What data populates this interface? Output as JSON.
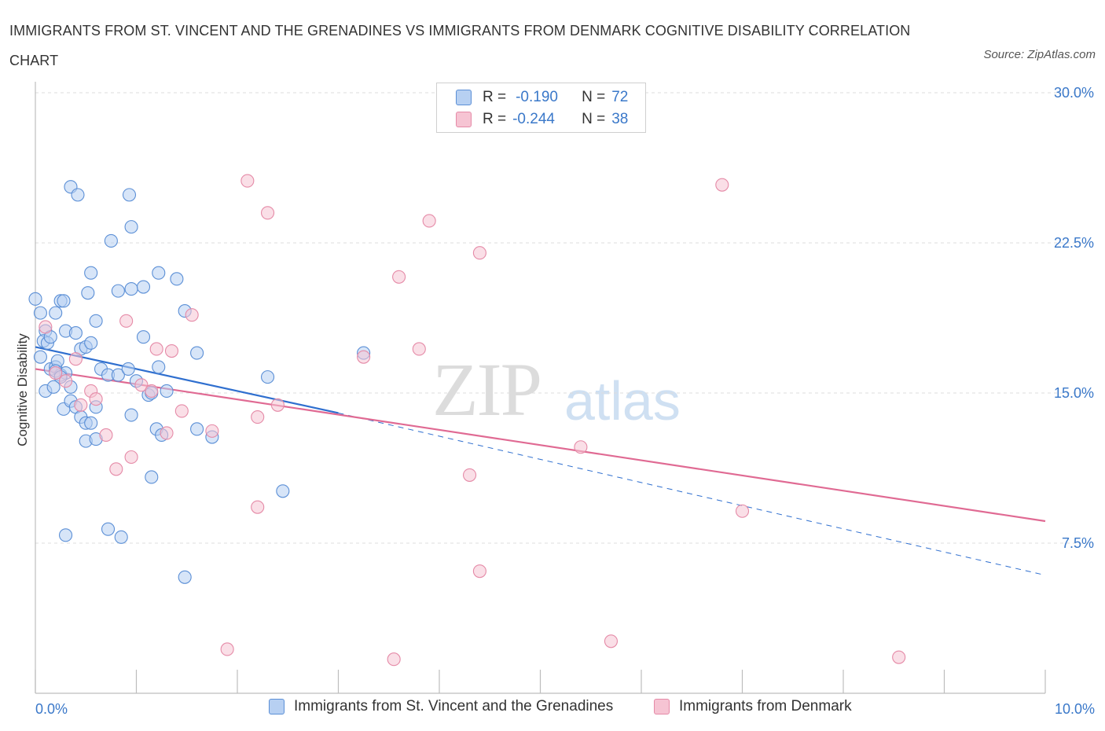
{
  "title": "IMMIGRANTS FROM ST. VINCENT AND THE GRENADINES VS IMMIGRANTS FROM DENMARK COGNITIVE DISABILITY CORRELATION CHART",
  "source": "Source: ZipAtlas.com",
  "watermark": {
    "zip": "ZIP",
    "atlas": "atlas"
  },
  "legend": {
    "rows": [
      {
        "r_label": "R =",
        "r_value": "-0.190",
        "n_label": "N =",
        "n_value": "72"
      },
      {
        "r_label": "R =",
        "r_value": "-0.244",
        "n_label": "N =",
        "n_value": "38"
      }
    ]
  },
  "colors": {
    "blue_fill": "#b7d0f2",
    "blue_stroke": "#5b8fd6",
    "blue_line": "#2f6fcf",
    "pink_fill": "#f6c4d3",
    "pink_stroke": "#e58aa7",
    "pink_line": "#e06a93",
    "grid": "#dcdcdc",
    "tick_text": "#3a78c9"
  },
  "chart_data": {
    "type": "scatter",
    "title": "IMMIGRANTS FROM ST. VINCENT AND THE GRENADINES VS IMMIGRANTS FROM DENMARK COGNITIVE DISABILITY CORRELATION CHART",
    "xlabel": "",
    "ylabel": "Cognitive Disability",
    "xlim": [
      0,
      10
    ],
    "ylim": [
      0,
      30
    ],
    "x_tick_labels": [
      "0.0%",
      "10.0%"
    ],
    "y_ticks": [
      7.5,
      15.0,
      22.5,
      30.0
    ],
    "y_tick_labels": [
      "7.5%",
      "15.0%",
      "22.5%",
      "30.0%"
    ],
    "grid": true,
    "legend_position": "top-center",
    "series": [
      {
        "name": "Immigrants from St. Vincent and the Grenadines",
        "color": "#5b8fd6",
        "trend": {
          "x": [
            0,
            3.0,
            10
          ],
          "y": [
            17.3,
            14.0,
            5.9
          ],
          "dashed_from": 3.0
        },
        "points": [
          [
            0.0,
            19.7
          ],
          [
            0.05,
            19.0
          ],
          [
            0.1,
            18.1
          ],
          [
            0.08,
            17.6
          ],
          [
            0.12,
            17.5
          ],
          [
            0.05,
            16.8
          ],
          [
            0.15,
            16.2
          ],
          [
            0.1,
            15.1
          ],
          [
            0.18,
            15.3
          ],
          [
            0.2,
            16.3
          ],
          [
            0.22,
            16.6
          ],
          [
            0.25,
            15.9
          ],
          [
            0.3,
            16.0
          ],
          [
            0.35,
            15.3
          ],
          [
            0.28,
            14.2
          ],
          [
            0.35,
            14.6
          ],
          [
            0.4,
            14.3
          ],
          [
            0.45,
            13.8
          ],
          [
            0.5,
            13.5
          ],
          [
            0.55,
            13.5
          ],
          [
            0.6,
            14.3
          ],
          [
            0.5,
            12.6
          ],
          [
            0.6,
            12.7
          ],
          [
            0.3,
            18.1
          ],
          [
            0.2,
            19.0
          ],
          [
            0.25,
            19.6
          ],
          [
            0.28,
            19.6
          ],
          [
            0.4,
            18.0
          ],
          [
            0.45,
            17.2
          ],
          [
            0.5,
            17.3
          ],
          [
            0.55,
            17.5
          ],
          [
            0.6,
            18.6
          ],
          [
            0.52,
            20.0
          ],
          [
            0.55,
            21.0
          ],
          [
            0.65,
            16.2
          ],
          [
            0.72,
            15.9
          ],
          [
            0.82,
            15.9
          ],
          [
            0.92,
            16.2
          ],
          [
            1.0,
            15.6
          ],
          [
            0.95,
            13.9
          ],
          [
            1.07,
            17.8
          ],
          [
            1.12,
            14.9
          ],
          [
            1.15,
            15.0
          ],
          [
            1.22,
            16.3
          ],
          [
            1.2,
            13.2
          ],
          [
            1.25,
            12.9
          ],
          [
            1.3,
            15.1
          ],
          [
            0.82,
            20.1
          ],
          [
            0.95,
            20.2
          ],
          [
            1.07,
            20.3
          ],
          [
            1.22,
            21.0
          ],
          [
            1.4,
            20.7
          ],
          [
            1.48,
            19.1
          ],
          [
            1.6,
            17.0
          ],
          [
            0.75,
            22.6
          ],
          [
            0.95,
            23.3
          ],
          [
            0.93,
            24.9
          ],
          [
            0.35,
            25.3
          ],
          [
            0.42,
            24.9
          ],
          [
            0.3,
            7.9
          ],
          [
            0.72,
            8.2
          ],
          [
            0.85,
            7.8
          ],
          [
            1.15,
            10.8
          ],
          [
            1.48,
            5.8
          ],
          [
            1.6,
            13.2
          ],
          [
            1.75,
            12.8
          ],
          [
            2.3,
            15.8
          ],
          [
            2.45,
            10.1
          ],
          [
            3.25,
            17.0
          ],
          [
            0.2,
            16.1
          ],
          [
            0.15,
            17.8
          ],
          [
            0.25,
            15.8
          ]
        ]
      },
      {
        "name": "Immigrants from Denmark",
        "color": "#e58aa7",
        "trend": {
          "x": [
            0,
            10
          ],
          "y": [
            16.2,
            8.6
          ]
        },
        "points": [
          [
            0.1,
            18.3
          ],
          [
            0.2,
            16.0
          ],
          [
            0.3,
            15.6
          ],
          [
            0.4,
            16.7
          ],
          [
            0.45,
            14.4
          ],
          [
            0.55,
            15.1
          ],
          [
            0.6,
            14.7
          ],
          [
            0.7,
            12.9
          ],
          [
            0.8,
            11.2
          ],
          [
            0.9,
            18.6
          ],
          [
            0.95,
            11.8
          ],
          [
            1.05,
            15.4
          ],
          [
            1.15,
            15.1
          ],
          [
            1.2,
            17.2
          ],
          [
            1.3,
            13.0
          ],
          [
            1.35,
            17.1
          ],
          [
            1.45,
            14.1
          ],
          [
            1.55,
            18.9
          ],
          [
            1.75,
            13.1
          ],
          [
            1.9,
            2.2
          ],
          [
            2.1,
            25.6
          ],
          [
            2.2,
            13.8
          ],
          [
            2.2,
            9.3
          ],
          [
            2.3,
            24.0
          ],
          [
            2.4,
            14.4
          ],
          [
            3.25,
            16.8
          ],
          [
            3.55,
            1.7
          ],
          [
            3.6,
            20.8
          ],
          [
            3.8,
            17.2
          ],
          [
            3.9,
            23.6
          ],
          [
            4.3,
            10.9
          ],
          [
            4.4,
            22.0
          ],
          [
            4.4,
            6.1
          ],
          [
            5.4,
            12.3
          ],
          [
            5.7,
            2.6
          ],
          [
            6.8,
            25.4
          ],
          [
            7.0,
            9.1
          ],
          [
            8.55,
            1.8
          ]
        ]
      }
    ]
  }
}
